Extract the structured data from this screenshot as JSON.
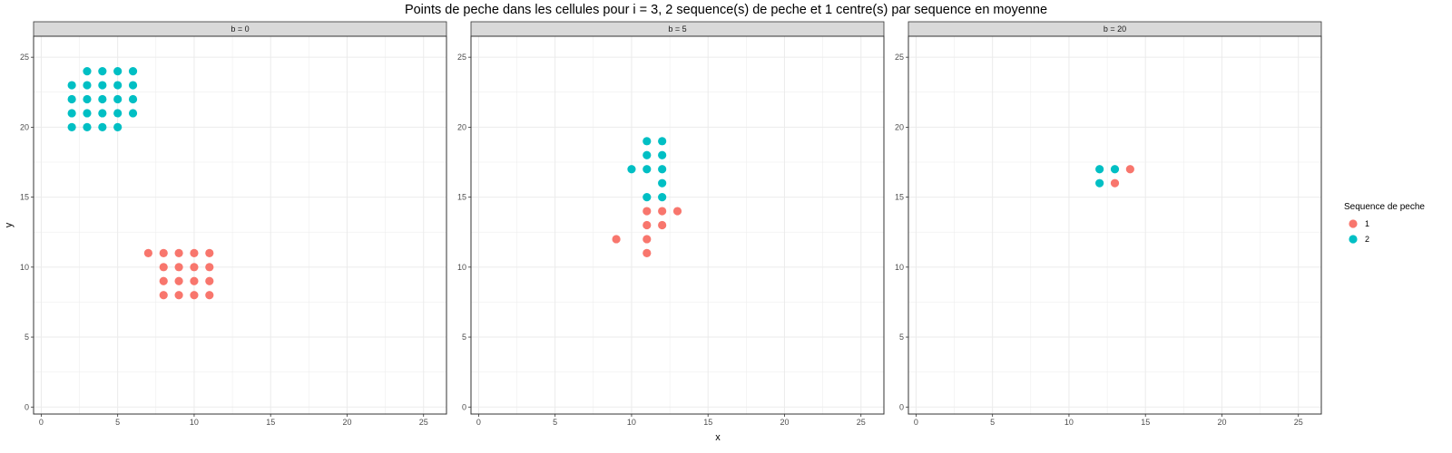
{
  "chart_data": {
    "type": "scatter",
    "title": "Points de peche dans les cellules pour i = 3, 2 sequence(s) de peche et 1 centre(s) par sequence en moyenne",
    "xlabel": "x",
    "ylabel": "y",
    "xlim": [
      -0.5,
      26.5
    ],
    "ylim": [
      -0.5,
      26.5
    ],
    "x_ticks": [
      0,
      5,
      10,
      15,
      20,
      25
    ],
    "y_ticks": [
      0,
      5,
      10,
      15,
      20,
      25
    ],
    "grid": true,
    "legend": {
      "title": "Sequence de peche",
      "position": "right",
      "entries": [
        {
          "label": "1",
          "color": "#F8766D"
        },
        {
          "label": "2",
          "color": "#00BFC4"
        }
      ]
    },
    "panels": [
      {
        "label": "b = 0",
        "series": [
          {
            "name": "1",
            "color": "#F8766D",
            "points": [
              [
                7,
                11
              ],
              [
                8,
                11
              ],
              [
                9,
                11
              ],
              [
                10,
                11
              ],
              [
                11,
                11
              ],
              [
                8,
                10
              ],
              [
                9,
                10
              ],
              [
                10,
                10
              ],
              [
                11,
                10
              ],
              [
                8,
                9
              ],
              [
                9,
                9
              ],
              [
                10,
                9
              ],
              [
                11,
                9
              ],
              [
                8,
                8
              ],
              [
                9,
                8
              ],
              [
                10,
                8
              ],
              [
                11,
                8
              ]
            ]
          },
          {
            "name": "2",
            "color": "#00BFC4",
            "points": [
              [
                3,
                24
              ],
              [
                4,
                24
              ],
              [
                5,
                24
              ],
              [
                6,
                24
              ],
              [
                2,
                23
              ],
              [
                3,
                23
              ],
              [
                4,
                23
              ],
              [
                5,
                23
              ],
              [
                6,
                23
              ],
              [
                2,
                22
              ],
              [
                3,
                22
              ],
              [
                4,
                22
              ],
              [
                5,
                22
              ],
              [
                6,
                22
              ],
              [
                2,
                21
              ],
              [
                3,
                21
              ],
              [
                4,
                21
              ],
              [
                5,
                21
              ],
              [
                6,
                21
              ],
              [
                2,
                20
              ],
              [
                3,
                20
              ],
              [
                4,
                20
              ],
              [
                5,
                20
              ]
            ]
          }
        ]
      },
      {
        "label": "b = 5",
        "series": [
          {
            "name": "1",
            "color": "#F8766D",
            "points": [
              [
                11,
                14
              ],
              [
                12,
                14
              ],
              [
                13,
                14
              ],
              [
                11,
                13
              ],
              [
                12,
                13
              ],
              [
                9,
                12
              ],
              [
                11,
                12
              ],
              [
                11,
                11
              ]
            ]
          },
          {
            "name": "2",
            "color": "#00BFC4",
            "points": [
              [
                11,
                19
              ],
              [
                12,
                19
              ],
              [
                11,
                18
              ],
              [
                12,
                18
              ],
              [
                10,
                17
              ],
              [
                11,
                17
              ],
              [
                12,
                17
              ],
              [
                12,
                16
              ],
              [
                11,
                15
              ],
              [
                12,
                15
              ]
            ]
          }
        ]
      },
      {
        "label": "b = 20",
        "series": [
          {
            "name": "1",
            "color": "#F8766D",
            "points": [
              [
                14,
                17
              ],
              [
                13,
                16
              ]
            ]
          },
          {
            "name": "2",
            "color": "#00BFC4",
            "points": [
              [
                12,
                17
              ],
              [
                13,
                17
              ],
              [
                12,
                16
              ]
            ]
          }
        ]
      }
    ]
  }
}
